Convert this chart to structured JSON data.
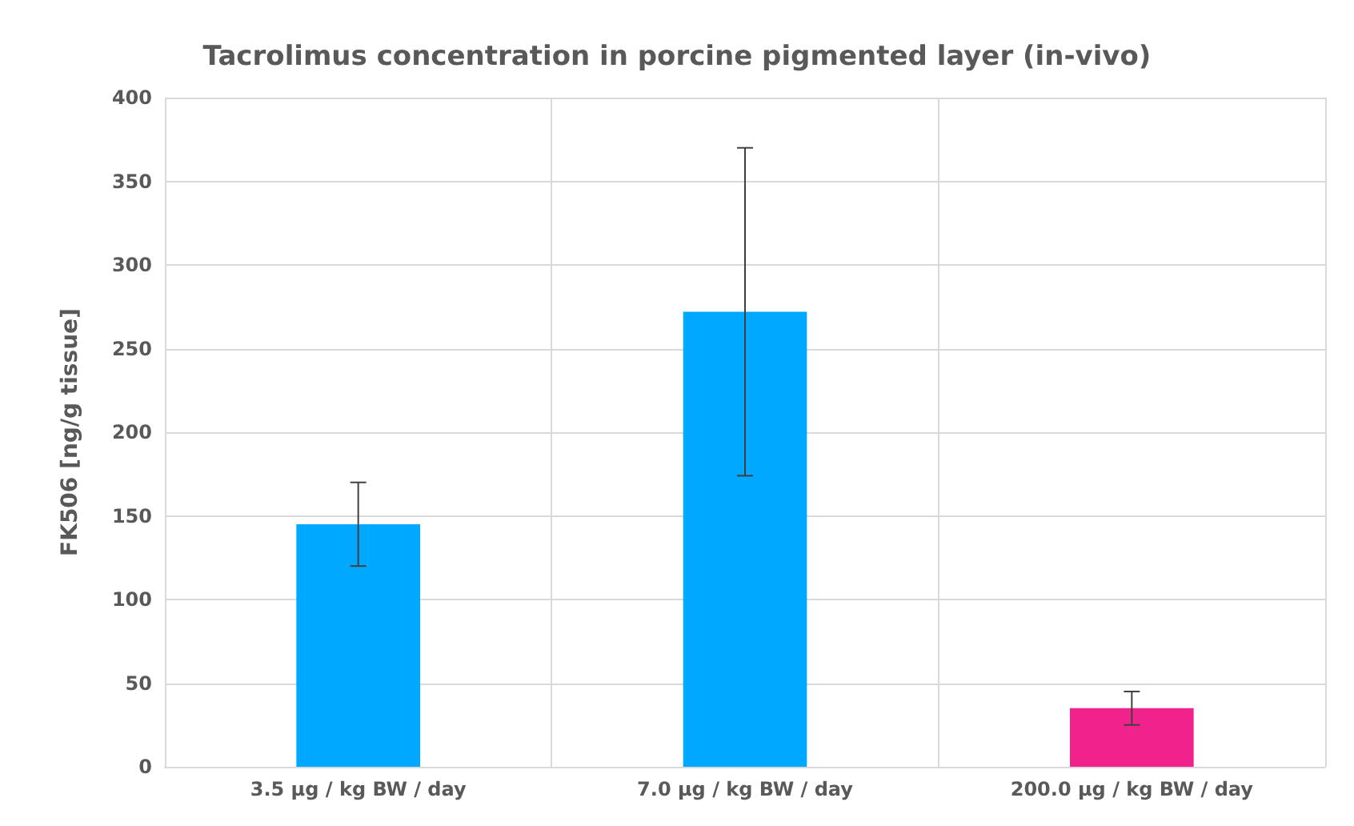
{
  "chart_data": {
    "type": "bar",
    "title": "Tacrolimus concentration in porcine pigmented layer (in-vivo)",
    "ylabel": "FK506 [ng/g tissue]",
    "categories": [
      "3.5 µg / kg BW / day",
      "7.0 µg / kg BW / day",
      "200.0 µg / kg BW / day"
    ],
    "values": [
      145,
      272,
      35
    ],
    "colors": [
      "#00a8ff",
      "#00a8ff",
      "#f0228c"
    ],
    "errors": [
      25,
      98,
      10
    ],
    "ylim": [
      0,
      400
    ],
    "yticks": [
      0,
      50,
      100,
      150,
      200,
      250,
      300,
      350,
      400
    ],
    "grid": true
  }
}
